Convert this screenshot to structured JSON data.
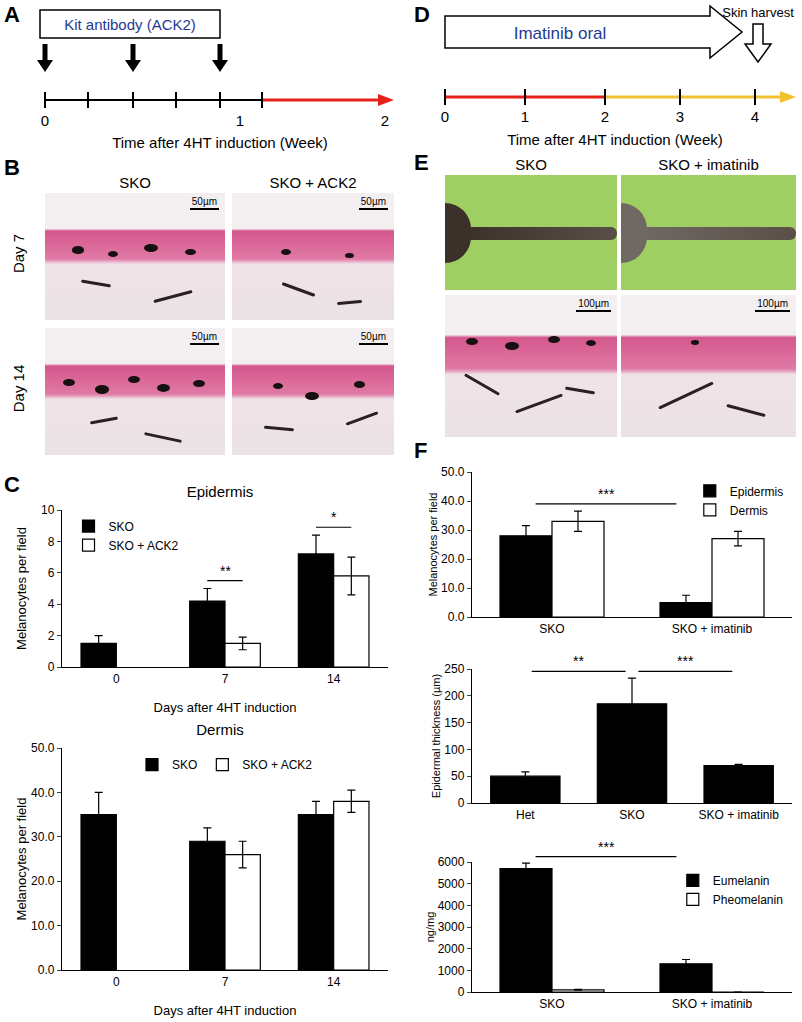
{
  "panels": {
    "A": {
      "letter": "A",
      "box": "Kit antibody (ACK2)",
      "axis_labels": [
        "0",
        "1",
        "2"
      ],
      "axis_title": "Time after 4HT induction (Week)"
    },
    "B": {
      "letter": "B",
      "columns": [
        "SKO",
        "SKO + ACK2"
      ],
      "rows": [
        "Day 7",
        "Day 14"
      ],
      "scale_bar": "50µm"
    },
    "C": {
      "letter": "C"
    },
    "D": {
      "letter": "D",
      "box": "Imatinib oral",
      "harvest_label": "Skin harvest",
      "axis_labels": [
        "0",
        "1",
        "2",
        "3",
        "4"
      ],
      "axis_title": "Time after 4HT induction (Week)"
    },
    "E": {
      "letter": "E",
      "columns": [
        "SKO",
        "SKO + imatinib"
      ],
      "scale_bar": "100µm"
    },
    "F": {
      "letter": "F"
    }
  },
  "chart_data": [
    {
      "type": "bar",
      "title": "Epidermis",
      "xlabel": "Days after 4HT induction",
      "ylabel": "Melanocytes per field",
      "categories": [
        "0",
        "7",
        "14"
      ],
      "series": [
        {
          "name": "SKO",
          "color": "#000000",
          "values": [
            1.5,
            4.2,
            7.2
          ],
          "errors": [
            0.5,
            0.8,
            1.2
          ]
        },
        {
          "name": "SKO + ACK2",
          "color": "#ffffff",
          "values": [
            null,
            1.5,
            5.8
          ],
          "errors": [
            null,
            0.4,
            1.2
          ]
        }
      ],
      "ylim": [
        0,
        10
      ],
      "yticks": [
        0,
        2,
        4,
        6,
        8,
        10
      ],
      "legend": "upper left",
      "significance": [
        {
          "label": "**",
          "from": {
            "category": "7",
            "series": "SKO"
          },
          "to": {
            "category": "7",
            "series": "SKO + ACK2"
          }
        },
        {
          "label": "*",
          "from": {
            "category": "14",
            "series": "SKO"
          },
          "to": {
            "category": "14",
            "series": "SKO + ACK2"
          }
        }
      ]
    },
    {
      "type": "bar",
      "title": "Dermis",
      "xlabel": "Days after 4HT induction",
      "ylabel": "Melanocytes per field",
      "categories": [
        "0",
        "7",
        "14"
      ],
      "series": [
        {
          "name": "SKO",
          "color": "#000000",
          "values": [
            35,
            29,
            35
          ],
          "errors": [
            5,
            3,
            3
          ]
        },
        {
          "name": "SKO + ACK2",
          "color": "#ffffff",
          "values": [
            null,
            26,
            38
          ],
          "errors": [
            null,
            3,
            2.5
          ]
        }
      ],
      "ylim": [
        0,
        50
      ],
      "yticks": [
        {
          "value": 0,
          "label": "0.0"
        },
        {
          "value": 10,
          "label": "10.0"
        },
        {
          "value": 20,
          "label": "20.0"
        },
        {
          "value": 30,
          "label": "30.0"
        },
        {
          "value": 40,
          "label": "40.0"
        },
        {
          "value": 50,
          "label": "50.0"
        }
      ],
      "legend": "upper center"
    },
    {
      "type": "bar",
      "ylabel": "Melanocytes per field",
      "categories": [
        "SKO",
        "SKO + imatinib"
      ],
      "series": [
        {
          "name": "Epidermis",
          "color": "#000000",
          "values": [
            28,
            5
          ],
          "errors": [
            3.5,
            2.5
          ]
        },
        {
          "name": "Dermis",
          "color": "#ffffff",
          "values": [
            33,
            27
          ],
          "errors": [
            3.5,
            2.5
          ]
        }
      ],
      "ylim": [
        0,
        50
      ],
      "yticks": [
        {
          "value": 0,
          "label": "0.0"
        },
        {
          "value": 10,
          "label": "10.0"
        },
        {
          "value": 20,
          "label": "20.0"
        },
        {
          "value": 30,
          "label": "30.0"
        },
        {
          "value": 40,
          "label": "40.0"
        },
        {
          "value": 50,
          "label": "50.0"
        }
      ],
      "legend": "upper right",
      "significance": [
        {
          "label": "***",
          "from": {
            "category": "SKO",
            "series": "Epidermis"
          },
          "to": {
            "category": "SKO + imatinib",
            "series": "Epidermis"
          }
        }
      ]
    },
    {
      "type": "bar",
      "ylabel": "Epidermal thickness (µm)",
      "categories": [
        "Het",
        "SKO",
        "SKO + imatinib"
      ],
      "color": "#000000",
      "values": [
        50,
        185,
        70
      ],
      "errors": [
        8,
        48,
        2
      ],
      "ylim": [
        0,
        250
      ],
      "yticks": [
        0,
        50,
        100,
        150,
        200,
        250
      ],
      "significance": [
        {
          "label": "**",
          "from": {
            "category": "Het"
          },
          "to": {
            "category": "SKO"
          }
        },
        {
          "label": "***",
          "from": {
            "category": "SKO"
          },
          "to": {
            "category": "SKO + imatinib"
          }
        }
      ]
    },
    {
      "type": "bar",
      "ylabel": "ng/mg",
      "categories": [
        "SKO",
        "SKO + imatinib"
      ],
      "series": [
        {
          "name": "Eumelanin",
          "color": "#000000",
          "values": [
            5700,
            1300
          ],
          "errors": [
            250,
            200
          ]
        },
        {
          "name": "Pheomelanin",
          "color": "#ffffff",
          "values": [
            100,
            0
          ],
          "errors": [
            20,
            null
          ]
        }
      ],
      "ylim": [
        0,
        6000
      ],
      "yticks": [
        0,
        1000,
        2000,
        3000,
        4000,
        5000,
        6000
      ],
      "legend": "upper right",
      "significance": [
        {
          "label": "***",
          "from": {
            "category": "SKO",
            "series": "Eumelanin"
          },
          "to": {
            "category": "SKO + imatinib",
            "series": "Eumelanin"
          }
        }
      ]
    }
  ]
}
